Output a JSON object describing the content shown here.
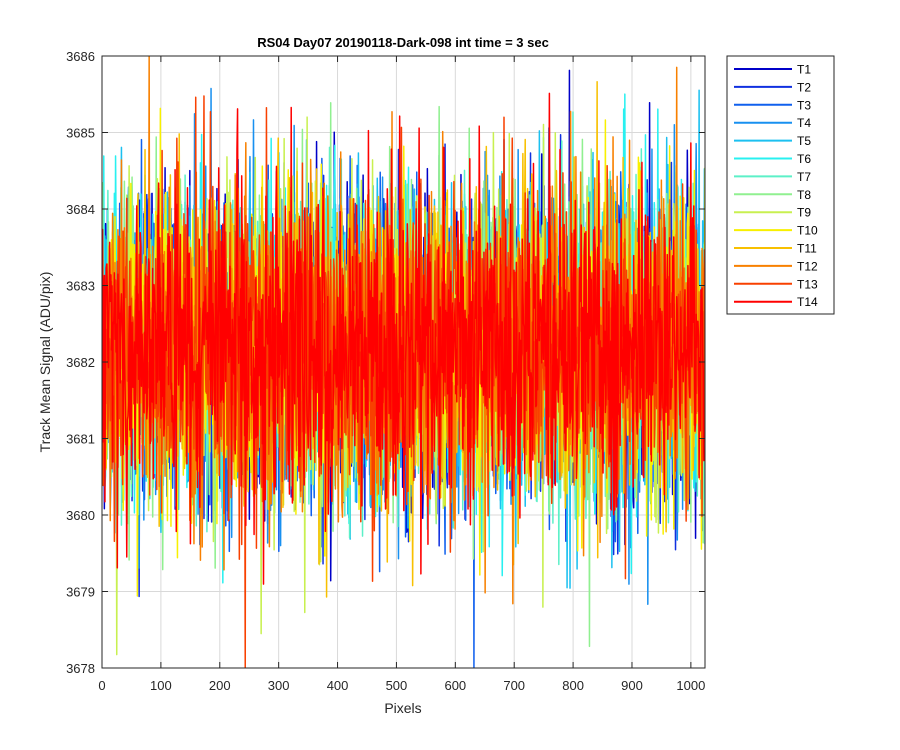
{
  "chart_data": {
    "type": "line",
    "title": "RS04 Day07 20190118-Dark-098 int time = 3 sec",
    "xlabel": "Pixels",
    "ylabel": "Track Mean Signal (ADU/pix)",
    "xlim": [
      0,
      1024
    ],
    "ylim": [
      3678,
      3686
    ],
    "xticks": [
      0,
      100,
      200,
      300,
      400,
      500,
      600,
      700,
      800,
      900,
      1000
    ],
    "yticks": [
      3678,
      3679,
      3680,
      3681,
      3682,
      3683,
      3684,
      3685,
      3686
    ],
    "grid": true,
    "legend_position": "outside-top-right",
    "n_points": 1024,
    "noise_mean": 3682.2,
    "noise_std": 1.0,
    "series": [
      {
        "name": "T1",
        "color": "#0000c8"
      },
      {
        "name": "T2",
        "color": "#1030e0"
      },
      {
        "name": "T3",
        "color": "#1060ee"
      },
      {
        "name": "T4",
        "color": "#1890f0"
      },
      {
        "name": "T5",
        "color": "#1cc0f0"
      },
      {
        "name": "T6",
        "color": "#28f0f0"
      },
      {
        "name": "T7",
        "color": "#5cf0c8"
      },
      {
        "name": "T8",
        "color": "#90f090"
      },
      {
        "name": "T9",
        "color": "#c8f050"
      },
      {
        "name": "T10",
        "color": "#f8f000"
      },
      {
        "name": "T11",
        "color": "#f8c000"
      },
      {
        "name": "T12",
        "color": "#f88000"
      },
      {
        "name": "T13",
        "color": "#f84000"
      },
      {
        "name": "T14",
        "color": "#ff0000"
      }
    ]
  }
}
